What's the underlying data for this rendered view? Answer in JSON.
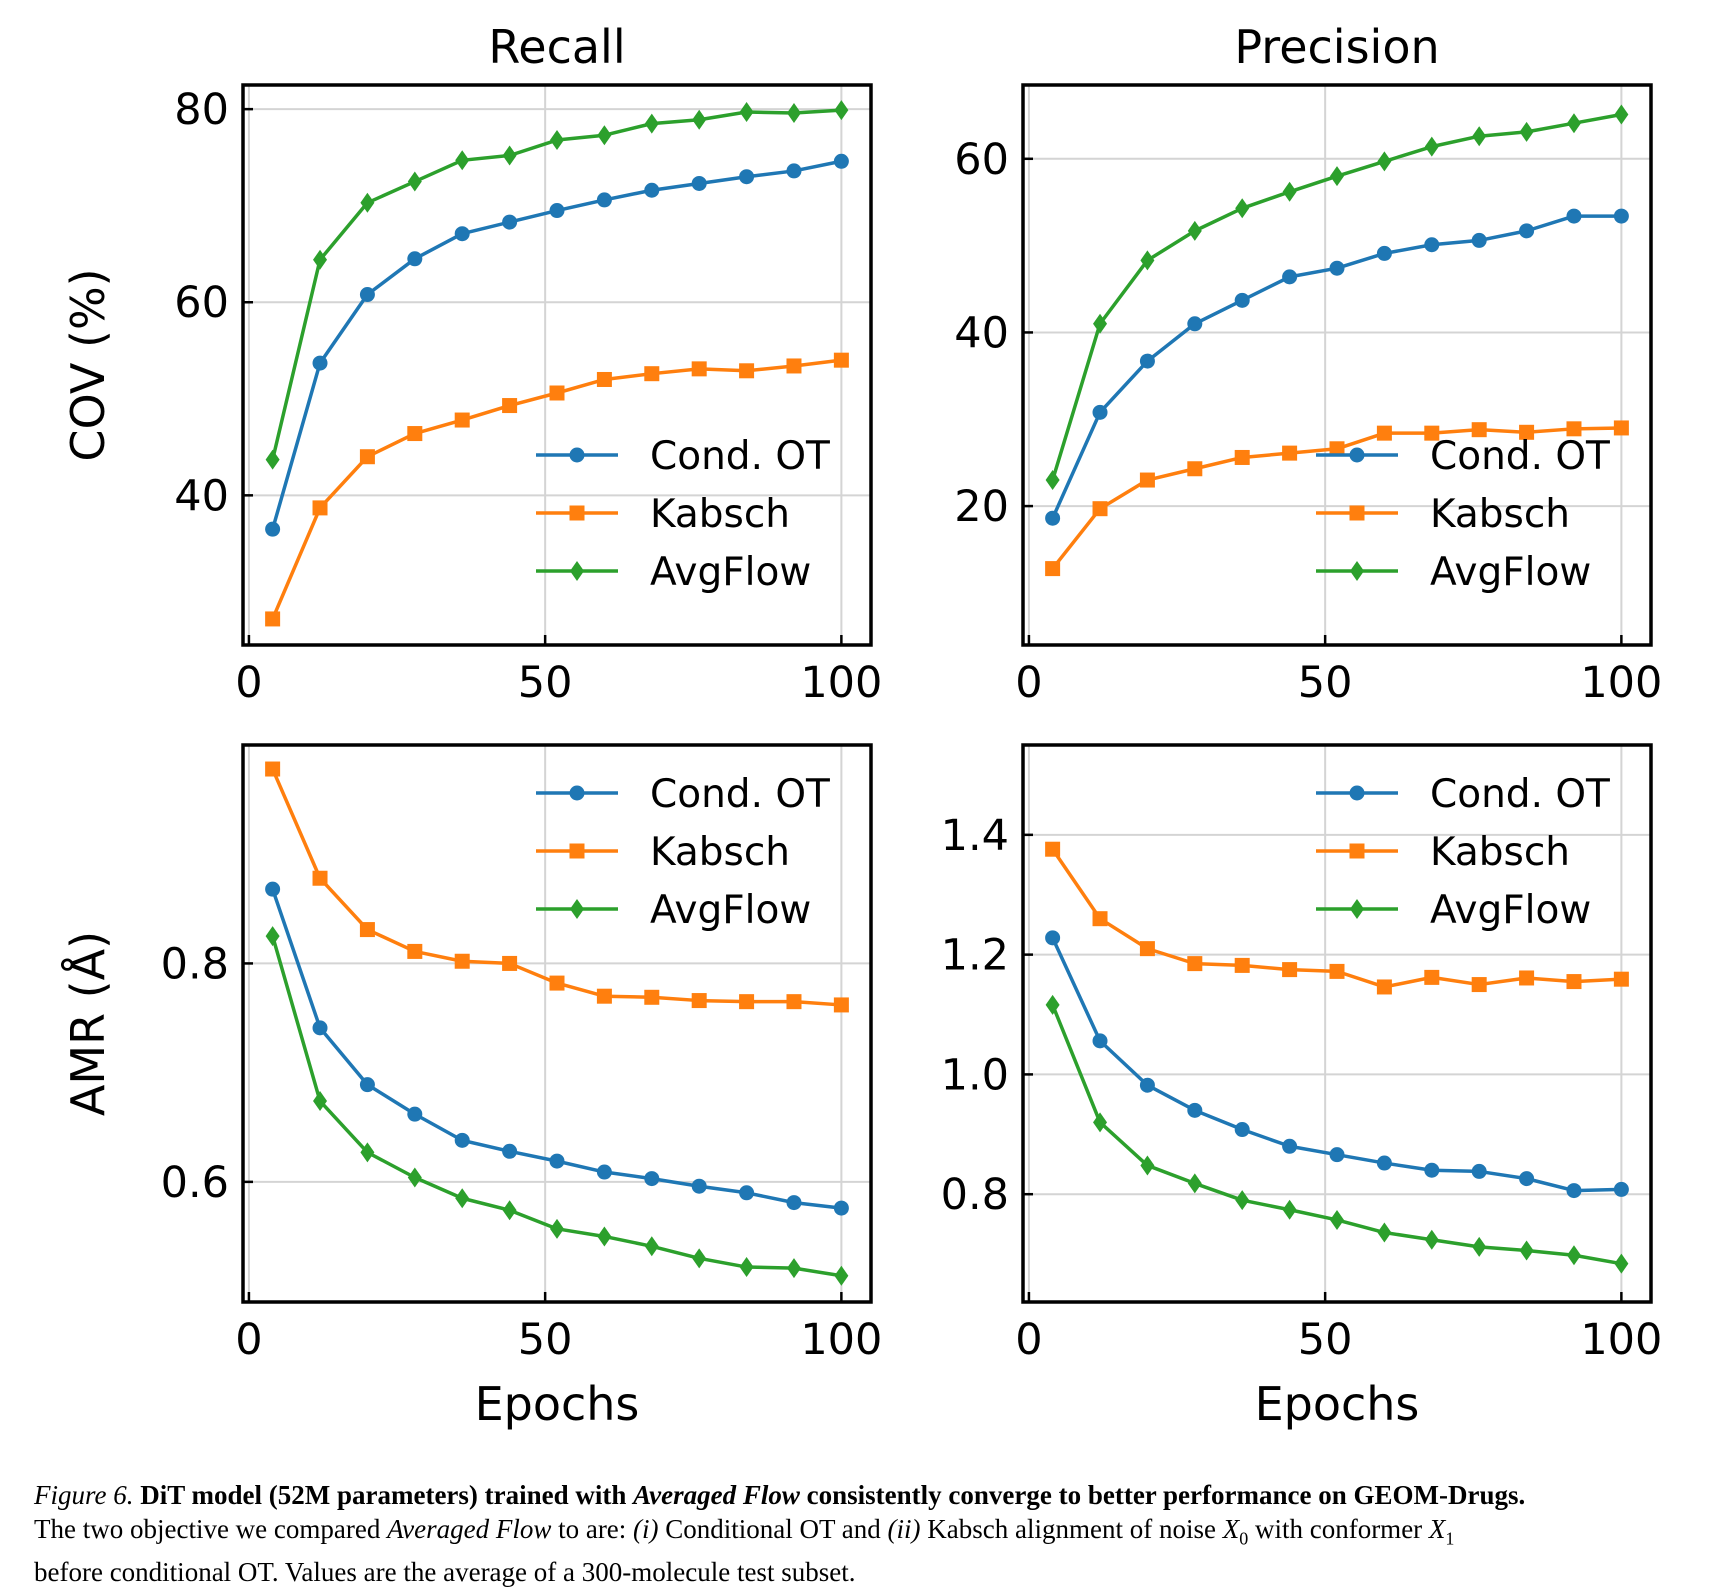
{
  "chart_data": [
    {
      "type": "line",
      "panel": "top-left",
      "title": "Recall",
      "xlabel": "",
      "ylabel": "COV (%)",
      "xlim": [
        -1,
        105
      ],
      "ylim": [
        24.5,
        82.5
      ],
      "xticks": [
        0,
        50,
        100
      ],
      "yticks": [
        40,
        60,
        80
      ],
      "grid": true,
      "legend_loc": "lower-right",
      "x": [
        4,
        12,
        20,
        28,
        36,
        44,
        52,
        60,
        68,
        76,
        84,
        92,
        100
      ],
      "series": [
        {
          "name": "Cond. OT",
          "color": "#1f77b4",
          "marker": "circle",
          "values": [
            36.5,
            53.7,
            60.8,
            64.5,
            67.1,
            68.3,
            69.5,
            70.6,
            71.6,
            72.3,
            73.0,
            73.6,
            74.6
          ]
        },
        {
          "name": "Kabsch",
          "color": "#ff7f0e",
          "marker": "square",
          "values": [
            27.2,
            38.7,
            44.0,
            46.4,
            47.8,
            49.3,
            50.6,
            52.0,
            52.6,
            53.1,
            52.9,
            53.4,
            54.0
          ]
        },
        {
          "name": "AvgFlow",
          "color": "#2ca02c",
          "marker": "diamond",
          "values": [
            43.7,
            64.4,
            70.3,
            72.5,
            74.7,
            75.2,
            76.8,
            77.3,
            78.5,
            78.9,
            79.7,
            79.6,
            79.9
          ]
        }
      ]
    },
    {
      "type": "line",
      "panel": "top-right",
      "title": "Precision",
      "xlabel": "",
      "ylabel": "",
      "xlim": [
        -1,
        105
      ],
      "ylim": [
        4,
        68.5
      ],
      "xticks": [
        0,
        50,
        100
      ],
      "yticks": [
        20,
        40,
        60
      ],
      "grid": true,
      "legend_loc": "lower-right",
      "x": [
        4,
        12,
        20,
        28,
        36,
        44,
        52,
        60,
        68,
        76,
        84,
        92,
        100
      ],
      "series": [
        {
          "name": "Cond. OT",
          "color": "#1f77b4",
          "marker": "circle",
          "values": [
            18.6,
            30.8,
            36.7,
            41.0,
            43.7,
            46.4,
            47.4,
            49.1,
            50.1,
            50.6,
            51.7,
            53.4,
            53.4
          ]
        },
        {
          "name": "Kabsch",
          "color": "#ff7f0e",
          "marker": "square",
          "values": [
            12.8,
            19.7,
            23.0,
            24.3,
            25.6,
            26.1,
            26.6,
            28.4,
            28.4,
            28.8,
            28.5,
            28.9,
            29.0
          ]
        },
        {
          "name": "AvgFlow",
          "color": "#2ca02c",
          "marker": "diamond",
          "values": [
            23.0,
            41.0,
            48.3,
            51.7,
            54.3,
            56.2,
            58.0,
            59.7,
            61.4,
            62.6,
            63.1,
            64.1,
            65.1
          ]
        }
      ]
    },
    {
      "type": "line",
      "panel": "bottom-left",
      "title": "",
      "xlabel": "Epochs",
      "ylabel": "AMR (Å)",
      "xlim": [
        -1,
        105
      ],
      "ylim": [
        0.49,
        1.0
      ],
      "xticks": [
        0,
        50,
        100
      ],
      "yticks": [
        0.6,
        0.8
      ],
      "grid": true,
      "legend_loc": "upper-right",
      "x": [
        4,
        12,
        20,
        28,
        36,
        44,
        52,
        60,
        68,
        76,
        84,
        92,
        100
      ],
      "series": [
        {
          "name": "Cond. OT",
          "color": "#1f77b4",
          "marker": "circle",
          "values": [
            0.868,
            0.741,
            0.689,
            0.662,
            0.638,
            0.628,
            0.619,
            0.609,
            0.603,
            0.596,
            0.59,
            0.581,
            0.576
          ]
        },
        {
          "name": "Kabsch",
          "color": "#ff7f0e",
          "marker": "square",
          "values": [
            0.978,
            0.878,
            0.831,
            0.811,
            0.802,
            0.8,
            0.782,
            0.77,
            0.769,
            0.766,
            0.765,
            0.765,
            0.762
          ]
        },
        {
          "name": "AvgFlow",
          "color": "#2ca02c",
          "marker": "diamond",
          "values": [
            0.825,
            0.674,
            0.627,
            0.604,
            0.585,
            0.574,
            0.557,
            0.55,
            0.541,
            0.53,
            0.522,
            0.521,
            0.514
          ]
        }
      ]
    },
    {
      "type": "line",
      "panel": "bottom-right",
      "title": "",
      "xlabel": "Epochs",
      "ylabel": "",
      "xlim": [
        -1,
        105
      ],
      "ylim": [
        0.62,
        1.55
      ],
      "xticks": [
        0,
        50,
        100
      ],
      "yticks": [
        0.8,
        1.0,
        1.2,
        1.4
      ],
      "grid": true,
      "legend_loc": "upper-right",
      "x": [
        4,
        12,
        20,
        28,
        36,
        44,
        52,
        60,
        68,
        76,
        84,
        92,
        100
      ],
      "series": [
        {
          "name": "Cond. OT",
          "color": "#1f77b4",
          "marker": "circle",
          "values": [
            1.228,
            1.056,
            0.982,
            0.94,
            0.908,
            0.88,
            0.866,
            0.852,
            0.84,
            0.838,
            0.826,
            0.806,
            0.808
          ]
        },
        {
          "name": "Kabsch",
          "color": "#ff7f0e",
          "marker": "square",
          "values": [
            1.376,
            1.26,
            1.21,
            1.185,
            1.182,
            1.175,
            1.172,
            1.146,
            1.162,
            1.15,
            1.161,
            1.155,
            1.159
          ]
        },
        {
          "name": "AvgFlow",
          "color": "#2ca02c",
          "marker": "diamond",
          "values": [
            1.116,
            0.92,
            0.848,
            0.818,
            0.79,
            0.774,
            0.757,
            0.736,
            0.724,
            0.712,
            0.706,
            0.698,
            0.684
          ]
        }
      ]
    }
  ],
  "caption": {
    "label": "Figure 6.",
    "bold_1": "DiT model (52M parameters) trained with",
    "bold_italic": "Averaged Flow",
    "bold_2": "consistently converge to better performance on GEOM-Drugs.",
    "line2_a": "The two objective we compared",
    "line2_b": "Averaged Flow",
    "line2_c": "to are:",
    "line2_d": "(i)",
    "line2_e": "Conditional OT and",
    "line2_f": "(ii)",
    "line2_g": "Kabsch alignment of noise",
    "x0_var": "X",
    "x0_sub": "0",
    "line2_h": "with conformer",
    "x1_var": "X",
    "x1_sub": "1",
    "line3": "before conditional OT. Values are the average of a 300-molecule test subset."
  }
}
